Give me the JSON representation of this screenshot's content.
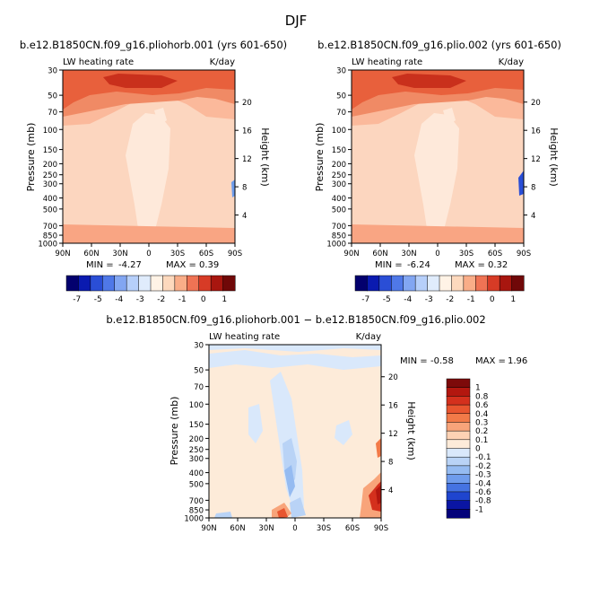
{
  "figure": {
    "title": "DJF"
  },
  "chart_data": [
    {
      "type": "heatmap",
      "title": "b.e12.B1850CN.f09_g16.pliohorb.001 (yrs 601-650)",
      "left_label": "LW heating rate",
      "right_label": "K/day",
      "ylabel": "Pressure (mb)",
      "y2label": "Height (km)",
      "yticks": [
        "30",
        "50",
        "70",
        "100",
        "150",
        "200",
        "250",
        "300",
        "400",
        "500",
        "700",
        "850",
        "1000"
      ],
      "y2ticks": [
        "20",
        "16",
        "12",
        "8",
        "4"
      ],
      "xticks": [
        "90N",
        "60N",
        "30N",
        "0",
        "30S",
        "60S",
        "90S"
      ],
      "min_label": "MIN =",
      "min_value": "-4.27",
      "max_label": "MAX =",
      "max_value": "0.39",
      "colorbar": {
        "orientation": "horizontal",
        "levels": [
          "-7",
          "-6",
          "-5",
          "-4",
          "-3",
          "-2.5",
          "-2",
          "-1.5",
          "-1",
          "-0.5",
          "0",
          "0.5",
          "1"
        ],
        "labels": [
          "-7",
          "-5",
          "-4",
          "-3",
          "-2",
          "-1",
          "0",
          "1"
        ],
        "colors": [
          "#03006e",
          "#0a1ab0",
          "#2a4ed6",
          "#4f78e8",
          "#82a6f2",
          "#b6cffa",
          "#e0ecfc",
          "#fff3e6",
          "#fdd9bd",
          "#f9ad88",
          "#ef7354",
          "#d73b26",
          "#a8160f",
          "#700808"
        ]
      }
    },
    {
      "type": "heatmap",
      "title": "b.e12.B1850CN.f09_g16.plio.002 (yrs 601-650)",
      "left_label": "LW heating rate",
      "right_label": "K/day",
      "ylabel": "Pressure (mb)",
      "y2label": "Height (km)",
      "yticks": [
        "30",
        "50",
        "70",
        "100",
        "150",
        "200",
        "250",
        "300",
        "400",
        "500",
        "700",
        "850",
        "1000"
      ],
      "y2ticks": [
        "20",
        "16",
        "12",
        "8",
        "4"
      ],
      "xticks": [
        "90N",
        "60N",
        "30N",
        "0",
        "30S",
        "60S",
        "90S"
      ],
      "min_label": "MIN =",
      "min_value": "-6.24",
      "max_label": "MAX =",
      "max_value": "0.32",
      "colorbar": {
        "orientation": "horizontal",
        "labels": [
          "-7",
          "-5",
          "-4",
          "-3",
          "-2",
          "-1",
          "0",
          "1"
        ]
      }
    },
    {
      "type": "heatmap",
      "title": "b.e12.B1850CN.f09_g16.pliohorb.001 − b.e12.B1850CN.f09_g16.plio.002",
      "left_label": "LW heating rate",
      "right_label": "K/day",
      "ylabel": "Pressure (mb)",
      "y2label": "Height (km)",
      "yticks": [
        "30",
        "50",
        "70",
        "100",
        "150",
        "200",
        "250",
        "300",
        "400",
        "500",
        "700",
        "850",
        "1000"
      ],
      "y2ticks": [
        "20",
        "16",
        "12",
        "8",
        "4"
      ],
      "xticks": [
        "90N",
        "60N",
        "30N",
        "0",
        "30S",
        "60S",
        "90S"
      ],
      "min_label": "MIN =",
      "min_value": "-0.58",
      "max_label": "MAX =",
      "max_value": "1.96",
      "colorbar": {
        "orientation": "vertical",
        "labels": [
          "1",
          "0.8",
          "0.6",
          "0.4",
          "0.3",
          "0.2",
          "0.1",
          "0",
          "-0.1",
          "-0.2",
          "-0.3",
          "-0.4",
          "-0.6",
          "-0.8",
          "-1"
        ],
        "colors": [
          "#7d0a0a",
          "#b3170f",
          "#d4301d",
          "#e8552f",
          "#f27a48",
          "#f8a47a",
          "#fdd2b4",
          "#fdebd9",
          "#d9e8fb",
          "#b9d3f6",
          "#95bbf1",
          "#6f9cec",
          "#4573e2",
          "#1f45cf",
          "#0a15a3",
          "#04027a"
        ]
      }
    }
  ]
}
